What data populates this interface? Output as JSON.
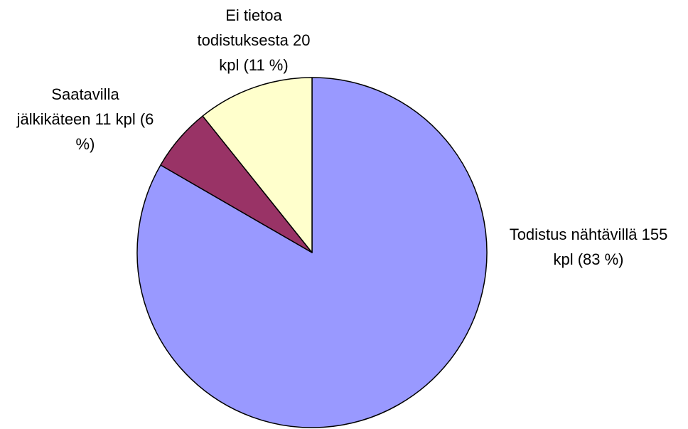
{
  "chart_data": {
    "type": "pie",
    "categories": [
      "Todistus nähtävillä",
      "Saatavilla jälkikäteen",
      "Ei tietoa todistuksesta"
    ],
    "values": [
      155,
      11,
      20
    ],
    "value_labels": [
      "155 kpl (83 %)",
      "11 kpl (6 %)",
      "20 kpl (11 %)"
    ],
    "colors": [
      "#9999ff",
      "#993366",
      "#ffffcc"
    ]
  }
}
